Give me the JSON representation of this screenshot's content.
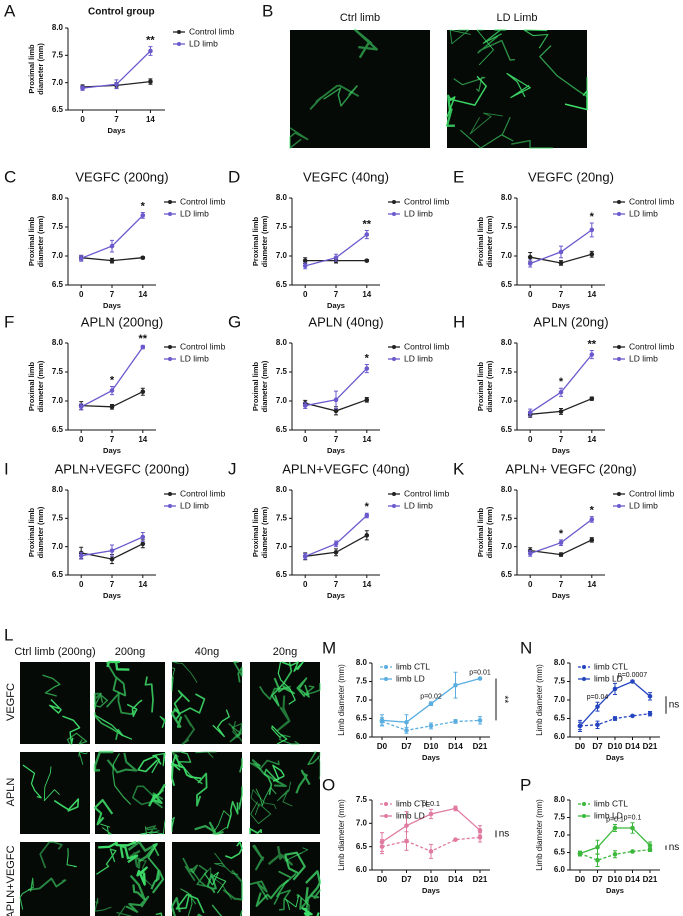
{
  "chart_data": [
    {
      "panel": "A",
      "type": "line",
      "title": "Control group",
      "x": [
        0,
        7,
        14
      ],
      "xlim": [
        -3,
        17
      ],
      "xticks": [
        0,
        7,
        14
      ],
      "xlabel": "Days",
      "ylabel": [
        "Proximal limb",
        "diameter (mm)"
      ],
      "ylim": [
        6.5,
        8
      ],
      "yticks": [
        6.5,
        {
          "value": 7,
          "label": "7.0"
        },
        7.5,
        {
          "value": 8,
          "label": "8.0"
        }
      ],
      "series": [
        {
          "name": "Control limb",
          "color": "#222222",
          "values": [
            6.92,
            6.95,
            7.02
          ],
          "errors": [
            0.04,
            0.05,
            0.05
          ]
        },
        {
          "name": "LD limb",
          "color": "#6a5acd",
          "values": [
            6.9,
            6.97,
            7.58
          ],
          "errors": [
            0.04,
            0.08,
            0.08
          ]
        }
      ],
      "annotations": [
        {
          "x": 14,
          "text": "**"
        }
      ]
    },
    {
      "panel": "C",
      "type": "line",
      "title": "VEGFC (200ng)",
      "x": [
        0,
        7,
        14
      ],
      "xlim": [
        -3,
        17
      ],
      "xticks": [
        0,
        7,
        14
      ],
      "xlabel": "Days",
      "ylabel": [
        "Proximal limb",
        "diameter (mm)"
      ],
      "ylim": [
        6.5,
        8
      ],
      "yticks": [
        6.5,
        {
          "value": 7,
          "label": "7.0"
        },
        7.5,
        {
          "value": 8,
          "label": "8.0"
        }
      ],
      "series": [
        {
          "name": "Control limb",
          "color": "#222222",
          "values": [
            6.97,
            6.92,
            6.97
          ],
          "errors": [
            0.04,
            0.04,
            0.02
          ]
        },
        {
          "name": "LD limb",
          "color": "#6a5acd",
          "values": [
            6.96,
            7.17,
            7.7
          ],
          "errors": [
            0.05,
            0.1,
            0.05
          ]
        }
      ],
      "annotations": [
        {
          "x": 14,
          "text": "*"
        }
      ]
    },
    {
      "panel": "D",
      "type": "line",
      "title": "VEGFC (40ng)",
      "x": [
        0,
        7,
        14
      ],
      "xlim": [
        -3,
        17
      ],
      "xticks": [
        0,
        7,
        14
      ],
      "xlabel": "Days",
      "ylabel": [
        "Proximal limb",
        "diameter (mm)"
      ],
      "ylim": [
        6.5,
        8
      ],
      "yticks": [
        6.5,
        {
          "value": 7,
          "label": "7.0"
        },
        7.5,
        {
          "value": 8,
          "label": "8.0"
        }
      ],
      "series": [
        {
          "name": "Control limb",
          "color": "#222222",
          "values": [
            6.92,
            6.92,
            6.92
          ],
          "errors": [
            0.05,
            0.04,
            0.02
          ]
        },
        {
          "name": "LD limb",
          "color": "#6a5acd",
          "values": [
            6.83,
            6.97,
            7.37
          ],
          "errors": [
            0.05,
            0.06,
            0.07
          ]
        }
      ],
      "annotations": [
        {
          "x": 14,
          "text": "**"
        }
      ]
    },
    {
      "panel": "E",
      "type": "line",
      "title": "VEGFC (20ng)",
      "x": [
        0,
        7,
        14
      ],
      "xlim": [
        -3,
        17
      ],
      "xticks": [
        0,
        7,
        14
      ],
      "xlabel": "Days",
      "ylabel": [
        "Proximal limb",
        "diameter (mm)"
      ],
      "ylim": [
        6.5,
        8
      ],
      "yticks": [
        6.5,
        {
          "value": 7,
          "label": "7.0"
        },
        7.5,
        {
          "value": 8,
          "label": "8.0"
        }
      ],
      "series": [
        {
          "name": "Control limb",
          "color": "#222222",
          "values": [
            6.98,
            6.88,
            7.03
          ],
          "errors": [
            0.08,
            0.04,
            0.05
          ]
        },
        {
          "name": "LD limb",
          "color": "#6a5acd",
          "values": [
            6.87,
            7.07,
            7.45
          ],
          "errors": [
            0.06,
            0.1,
            0.12
          ]
        }
      ],
      "annotations": [
        {
          "x": 14,
          "text": "*"
        }
      ]
    },
    {
      "panel": "F",
      "type": "line",
      "title": "APLN (200ng)",
      "x": [
        0,
        7,
        14
      ],
      "xlim": [
        -3,
        17
      ],
      "xticks": [
        0,
        7,
        14
      ],
      "xlabel": "Days",
      "ylabel": [
        "Proximal limb",
        "diameter (mm)"
      ],
      "ylim": [
        6.5,
        8
      ],
      "yticks": [
        6.5,
        {
          "value": 7,
          "label": "7.0"
        },
        7.5,
        {
          "value": 8,
          "label": "8.0"
        }
      ],
      "series": [
        {
          "name": "Control limb",
          "color": "#222222",
          "values": [
            6.92,
            6.9,
            7.16
          ],
          "errors": [
            0.07,
            0.04,
            0.06
          ]
        },
        {
          "name": "LD limb",
          "color": "#6a5acd",
          "values": [
            6.9,
            7.18,
            7.93
          ],
          "errors": [
            0.05,
            0.07,
            0.03
          ]
        }
      ],
      "annotations": [
        {
          "x": 7,
          "text": "*"
        },
        {
          "x": 14,
          "text": "**"
        }
      ]
    },
    {
      "panel": "G",
      "type": "line",
      "title": "APLN (40ng)",
      "x": [
        0,
        7,
        14
      ],
      "xlim": [
        -3,
        17
      ],
      "xticks": [
        0,
        7,
        14
      ],
      "xlabel": "Days",
      "ylabel": [
        "Proximal limb",
        "diameter (mm)"
      ],
      "ylim": [
        6.5,
        8
      ],
      "yticks": [
        6.5,
        {
          "value": 7,
          "label": "7.0"
        },
        7.5,
        {
          "value": 8,
          "label": "8.0"
        }
      ],
      "series": [
        {
          "name": "Control limb",
          "color": "#222222",
          "values": [
            6.96,
            6.83,
            7.02
          ],
          "errors": [
            0.05,
            0.07,
            0.04
          ]
        },
        {
          "name": "LD limb",
          "color": "#6a5acd",
          "values": [
            6.92,
            7.02,
            7.56
          ],
          "errors": [
            0.05,
            0.15,
            0.07
          ]
        }
      ],
      "annotations": [
        {
          "x": 14,
          "text": "*"
        }
      ]
    },
    {
      "panel": "H",
      "type": "line",
      "title": "APLN (20ng)",
      "x": [
        0,
        7,
        14
      ],
      "xlim": [
        -3,
        17
      ],
      "xticks": [
        0,
        7,
        14
      ],
      "xlabel": "Days",
      "ylabel": [
        "Proximal limb",
        "diameter (mm)"
      ],
      "ylim": [
        6.5,
        8
      ],
      "yticks": [
        6.5,
        {
          "value": 7,
          "label": "7.0"
        },
        7.5,
        {
          "value": 8,
          "label": "8.0"
        }
      ],
      "series": [
        {
          "name": "Control limb",
          "color": "#222222",
          "values": [
            6.77,
            6.82,
            7.04
          ],
          "errors": [
            0.05,
            0.05,
            0.03
          ]
        },
        {
          "name": "LD limb",
          "color": "#6a5acd",
          "values": [
            6.8,
            7.15,
            7.8
          ],
          "errors": [
            0.06,
            0.07,
            0.07
          ]
        }
      ],
      "annotations": [
        {
          "x": 7,
          "text": "*"
        },
        {
          "x": 14,
          "text": "**"
        }
      ]
    },
    {
      "panel": "I",
      "type": "line",
      "title": "APLN+VEGFC (200ng)",
      "x": [
        0,
        7,
        14
      ],
      "xlim": [
        -3,
        17
      ],
      "xticks": [
        0,
        7,
        14
      ],
      "xlabel": "Days",
      "ylabel": [
        "Proximal limb",
        "diameter (mm)"
      ],
      "ylim": [
        6.5,
        8
      ],
      "yticks": [
        6.5,
        {
          "value": 7,
          "label": "7.0"
        },
        7.5,
        {
          "value": 8,
          "label": "8.0"
        }
      ],
      "series": [
        {
          "name": "Control limb",
          "color": "#222222",
          "values": [
            6.89,
            6.78,
            7.05
          ],
          "errors": [
            0.1,
            0.08,
            0.07
          ]
        },
        {
          "name": "LD limb",
          "color": "#6a5acd",
          "values": [
            6.84,
            6.93,
            7.17
          ],
          "errors": [
            0.06,
            0.1,
            0.08
          ]
        }
      ],
      "annotations": []
    },
    {
      "panel": "J",
      "type": "line",
      "title": "APLN+VEGFC (40ng)",
      "x": [
        0,
        7,
        14
      ],
      "xlim": [
        -3,
        17
      ],
      "xticks": [
        0,
        7,
        14
      ],
      "xlabel": "Days",
      "ylabel": [
        "Proximal limb",
        "diameter (mm)"
      ],
      "ylim": [
        6.5,
        8
      ],
      "yticks": [
        6.5,
        {
          "value": 7,
          "label": "7.0"
        },
        7.5,
        {
          "value": 8,
          "label": "8.0"
        }
      ],
      "series": [
        {
          "name": "Control limb",
          "color": "#222222",
          "values": [
            6.83,
            6.9,
            7.2
          ],
          "errors": [
            0.06,
            0.06,
            0.08
          ]
        },
        {
          "name": "LD limb",
          "color": "#6a5acd",
          "values": [
            6.83,
            7.05,
            7.55
          ],
          "errors": [
            0.05,
            0.05,
            0.04
          ]
        }
      ],
      "annotations": [
        {
          "x": 14,
          "text": "*"
        }
      ]
    },
    {
      "panel": "K",
      "type": "line",
      "title": "APLN+ VEGFC (20ng)",
      "x": [
        0,
        7,
        14
      ],
      "xlim": [
        -3,
        17
      ],
      "xticks": [
        0,
        7,
        14
      ],
      "xlabel": "Days",
      "ylabel": [
        "Proximal limb",
        "diameter (mm)"
      ],
      "ylim": [
        6.5,
        8
      ],
      "yticks": [
        6.5,
        {
          "value": 7,
          "label": "7.0"
        },
        7.5,
        {
          "value": 8,
          "label": "8.0"
        }
      ],
      "series": [
        {
          "name": "Control limb",
          "color": "#222222",
          "values": [
            6.93,
            6.86,
            7.12
          ],
          "errors": [
            0.05,
            0.03,
            0.04
          ]
        },
        {
          "name": "LD limb",
          "color": "#6a5acd",
          "values": [
            6.88,
            7.07,
            7.48
          ],
          "errors": [
            0.05,
            0.05,
            0.05
          ]
        }
      ],
      "annotations": [
        {
          "x": 7,
          "text": "*"
        },
        {
          "x": 14,
          "text": "*"
        }
      ]
    },
    {
      "panel": "M",
      "type": "line",
      "categories": [
        "D0",
        "D7",
        "D10",
        "D14",
        "D21"
      ],
      "xlabel": "Days",
      "ylabel": "Limb diameter (mm)",
      "ylim": [
        6,
        8
      ],
      "yticks": [
        {
          "value": 6,
          "label": "6.0"
        },
        6.5,
        {
          "value": 7,
          "label": "7.0"
        },
        7.5,
        {
          "value": 8,
          "label": "8.0"
        }
      ],
      "series": [
        {
          "name": "limb CTL",
          "color": "#5aaee0",
          "dashed": true,
          "values": [
            6.42,
            6.18,
            6.3,
            6.42,
            6.45
          ],
          "errors": [
            0.1,
            0.08,
            0.08,
            0.05,
            0.1
          ]
        },
        {
          "name": "limb LD",
          "color": "#5aaee0",
          "values": [
            6.45,
            6.4,
            6.9,
            7.4,
            7.58
          ],
          "errors": [
            0.15,
            0.2,
            0.05,
            0.35,
            0.02
          ]
        }
      ],
      "annotations": [
        {
          "category": "D10",
          "text": "p=0.02"
        },
        {
          "category": "D21",
          "text": "p=0.01"
        }
      ],
      "side_label": "**"
    },
    {
      "panel": "N",
      "type": "line",
      "categories": [
        "D0",
        "D7",
        "D10",
        "D14",
        "D21"
      ],
      "xlabel": "Days",
      "ylabel": "Limb diameter (mm)",
      "ylim": [
        6,
        8
      ],
      "yticks": [
        {
          "value": 6,
          "label": "6.0"
        },
        6.5,
        {
          "value": 7,
          "label": "7.0"
        },
        7.5,
        {
          "value": 8,
          "label": "8.0"
        }
      ],
      "series": [
        {
          "name": "limb CTL",
          "color": "#2545c0",
          "dashed": true,
          "values": [
            6.3,
            6.33,
            6.5,
            6.57,
            6.63
          ],
          "errors": [
            0.1,
            0.1,
            0.05,
            0.02,
            0.06
          ]
        },
        {
          "name": "limb LD",
          "color": "#2545c0",
          "values": [
            6.3,
            6.82,
            7.3,
            7.5,
            7.1
          ],
          "errors": [
            0.15,
            0.12,
            0.15,
            0.03,
            0.1
          ]
        }
      ],
      "annotations": [
        {
          "category": "D7",
          "text": "p=0.04"
        },
        {
          "category": "D14",
          "text": "p=0.0007"
        }
      ],
      "side_label": "ns"
    },
    {
      "panel": "O",
      "type": "line",
      "categories": [
        "D0",
        "D7",
        "D10",
        "D14",
        "D21"
      ],
      "xlabel": "Days",
      "ylabel": "Limb diameter (mm)",
      "ylim": [
        6,
        7.5
      ],
      "yticks": [
        {
          "value": 6,
          "label": "6.0"
        },
        6.5,
        {
          "value": 7,
          "label": "7.0"
        },
        7.5
      ],
      "series": [
        {
          "name": "limb CTL",
          "color": "#e07aa0",
          "dashed": true,
          "values": [
            6.5,
            6.62,
            6.4,
            6.65,
            6.7
          ],
          "errors": [
            0.15,
            0.2,
            0.15,
            0.02,
            0.1
          ]
        },
        {
          "name": "limb LD",
          "color": "#e07aa0",
          "values": [
            6.6,
            6.95,
            7.2,
            7.32,
            6.85
          ],
          "errors": [
            0.2,
            0.3,
            0.1,
            0.05,
            0.1
          ]
        }
      ],
      "annotations": [
        {
          "category": "D10",
          "text": "p=0.1"
        }
      ],
      "side_label": "ns"
    },
    {
      "panel": "P",
      "type": "line",
      "categories": [
        "D0",
        "D7",
        "D10",
        "D14",
        "D21"
      ],
      "xlabel": "Days",
      "ylabel": "Limb diameter (mm)",
      "ylim": [
        6,
        8
      ],
      "yticks": [
        {
          "value": 6,
          "label": "6.0"
        },
        6.5,
        {
          "value": 7,
          "label": "7.0"
        },
        7.5,
        {
          "value": 8,
          "label": "8.0"
        }
      ],
      "series": [
        {
          "name": "limb CTL",
          "color": "#3cb83c",
          "dashed": true,
          "values": [
            6.47,
            6.28,
            6.45,
            6.53,
            6.58
          ],
          "errors": [
            0.07,
            0.18,
            0.1,
            0.02,
            0.05
          ]
        },
        {
          "name": "limb LD",
          "color": "#3cb83c",
          "values": [
            6.47,
            6.65,
            7.2,
            7.2,
            6.7
          ],
          "errors": [
            0.05,
            0.2,
            0.1,
            0.15,
            0.1
          ]
        }
      ],
      "annotations": [
        {
          "category": "D10",
          "text": "p=0.1"
        },
        {
          "category": "D14",
          "text": "p=0.1"
        }
      ],
      "side_label": "ns"
    }
  ],
  "images": [
    {
      "panel": "B",
      "labels": [
        "Ctrl limb",
        "LD Limb"
      ]
    },
    {
      "panel": "L",
      "columns": [
        "Ctrl limb (200ng)",
        "200ng",
        "40ng",
        "20ng"
      ],
      "rows": [
        "VEGFC",
        "APLN",
        "APLN+VEGFC"
      ]
    }
  ]
}
